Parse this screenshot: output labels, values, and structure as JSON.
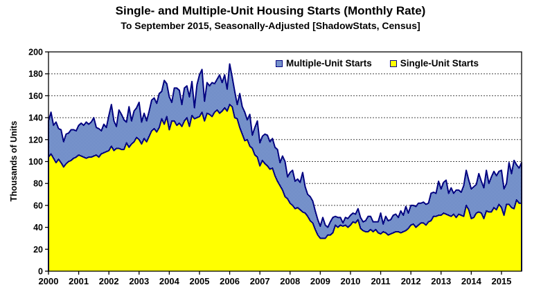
{
  "chart_data": {
    "type": "area",
    "stacked": true,
    "title": "Single- and Multiple-Unit Housing Starts (Monthly Rate)",
    "subtitle": "To September 2015, Seasonally-Adjusted [ShadowStats, Census]",
    "ylabel": "Thousands of Units",
    "xlabel": "",
    "ylim": [
      0,
      200
    ],
    "ytick_step": 20,
    "grid": "horizontal-dotted",
    "x_start": "2000-01",
    "x_end": "2015-09",
    "x_tick_labels": [
      "2000",
      "2001",
      "2002",
      "2003",
      "2004",
      "2005",
      "2006",
      "2007",
      "2008",
      "2009",
      "2010",
      "2011",
      "2012",
      "2013",
      "2014",
      "2015"
    ],
    "legend_position": "top-inside",
    "legend": [
      {
        "label": "Multiple-Unit Starts",
        "swatch": "blue-checker"
      },
      {
        "label": "Single-Unit Starts",
        "swatch": "yellow"
      }
    ],
    "colors": {
      "single_fill": "#FFFF00",
      "multiple_fill_dark": "#3A5FAE",
      "multiple_fill_light": "#AFC2E5",
      "border_line": "#000080",
      "grid_line": "#444444",
      "axis": "#000000"
    },
    "series": [
      {
        "name": "Single-Unit Starts",
        "values": [
          104,
          107,
          103,
          99,
          102,
          99,
          95,
          98,
          100,
          101,
          103,
          104,
          106,
          105,
          104,
          103,
          104,
          104,
          105,
          106,
          104,
          107,
          108,
          109,
          110,
          114,
          110,
          112,
          112,
          111,
          111,
          117,
          113,
          116,
          118,
          122,
          120,
          116,
          121,
          118,
          123,
          128,
          130,
          127,
          131,
          139,
          134,
          141,
          129,
          137,
          137,
          133,
          135,
          132,
          137,
          140,
          132,
          142,
          139,
          140,
          141,
          145,
          137,
          144,
          143,
          141,
          145,
          147,
          144,
          146,
          149,
          146,
          152,
          150,
          140,
          139,
          131,
          125,
          119,
          120,
          114,
          112,
          106,
          104,
          96,
          101,
          98,
          96,
          93,
          94,
          87,
          82,
          78,
          74,
          68,
          66,
          62,
          60,
          57,
          58,
          56,
          54,
          53,
          50,
          46,
          44,
          38,
          33,
          30,
          30,
          30,
          33,
          33,
          35,
          42,
          40,
          42,
          41,
          42,
          40,
          42,
          45,
          44,
          47,
          39,
          37,
          36,
          36,
          38,
          36,
          38,
          35,
          34,
          36,
          35,
          33,
          34,
          35,
          36,
          36,
          35,
          36,
          37,
          39,
          42,
          43,
          40,
          42,
          44,
          44,
          42,
          45,
          46,
          50,
          50,
          51,
          51,
          53,
          52,
          51,
          50,
          52,
          49,
          52,
          51,
          50,
          60,
          56,
          48,
          49,
          53,
          54,
          53,
          48,
          55,
          54,
          54,
          58,
          56,
          61,
          58,
          51,
          61,
          61,
          58,
          57,
          65,
          62,
          62
        ]
      },
      {
        "name": "Multiple-Unit Starts",
        "values": [
          33,
          38,
          30,
          37,
          28,
          30,
          23,
          27,
          26,
          28,
          26,
          24,
          27,
          30,
          29,
          33,
          30,
          32,
          35,
          25,
          26,
          21,
          26,
          22,
          32,
          38,
          27,
          20,
          35,
          32,
          27,
          19,
          37,
          21,
          28,
          27,
          34,
          20,
          23,
          19,
          23,
          28,
          28,
          26,
          31,
          25,
          40,
          30,
          30,
          17,
          30,
          34,
          30,
          20,
          30,
          29,
          27,
          31,
          10,
          30,
          38,
          39,
          18,
          28,
          26,
          31,
          26,
          28,
          35,
          26,
          30,
          20,
          37,
          27,
          24,
          13,
          31,
          25,
          26,
          18,
          29,
          12,
          25,
          33,
          21,
          22,
          27,
          28,
          25,
          27,
          26,
          29,
          21,
          31,
          32,
          20,
          28,
          32,
          25,
          26,
          25,
          36,
          24,
          20,
          22,
          20,
          17,
          14,
          11,
          19,
          12,
          7,
          12,
          14,
          8,
          9,
          7,
          3,
          7,
          8,
          9,
          8,
          8,
          10,
          10,
          8,
          10,
          14,
          12,
          9,
          7,
          10,
          19,
          7,
          15,
          13,
          13,
          16,
          16,
          13,
          20,
          15,
          22,
          14,
          18,
          17,
          19,
          20,
          18,
          19,
          19,
          17,
          25,
          22,
          21,
          31,
          24,
          28,
          31,
          20,
          26,
          19,
          25,
          22,
          21,
          28,
          32,
          27,
          27,
          28,
          26,
          35,
          29,
          28,
          37,
          26,
          32,
          33,
          31,
          30,
          34,
          24,
          19,
          38,
          31,
          44,
          32,
          32,
          37
        ]
      }
    ]
  }
}
